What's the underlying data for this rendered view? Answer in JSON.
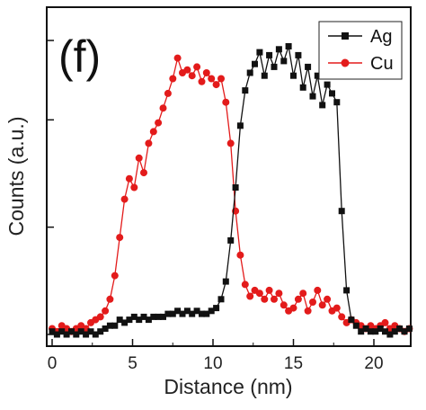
{
  "panel_label": "(f)",
  "colors": {
    "ag": "#111111",
    "cu": "#e31b1b"
  },
  "chart_data": {
    "type": "line",
    "xlabel": "Distance (nm)",
    "ylabel": "Counts (a.u.)",
    "xlim": [
      0,
      22.5
    ],
    "ylim": [
      0,
      1
    ],
    "x_ticks": [
      0,
      5,
      10,
      15,
      20
    ],
    "y_ticks": [
      0.0,
      0.365,
      0.73,
      1.0
    ],
    "y_tick_labels_visible": false,
    "legend_position": "top-right",
    "series": [
      {
        "name": "Ag",
        "marker": "square",
        "x": [
          0,
          0.3,
          0.6,
          0.9,
          1.2,
          1.5,
          1.8,
          2.1,
          2.4,
          2.7,
          3.0,
          3.3,
          3.6,
          3.9,
          4.2,
          4.5,
          4.8,
          5.1,
          5.4,
          5.7,
          6.0,
          6.3,
          6.6,
          6.9,
          7.2,
          7.5,
          7.8,
          8.1,
          8.4,
          8.7,
          9.0,
          9.3,
          9.6,
          9.9,
          10.2,
          10.5,
          10.8,
          11.1,
          11.4,
          11.7,
          12.0,
          12.3,
          12.6,
          12.9,
          13.2,
          13.5,
          13.8,
          14.1,
          14.4,
          14.7,
          15.0,
          15.3,
          15.6,
          15.9,
          16.2,
          16.5,
          16.8,
          17.1,
          17.4,
          17.7,
          18.0,
          18.3,
          18.6,
          18.9,
          19.2,
          19.5,
          19.8,
          20.1,
          20.4,
          20.7,
          21.0,
          21.3,
          21.6,
          21.9,
          22.2
        ],
        "y": [
          0.01,
          0.0,
          0.01,
          0.0,
          0.01,
          0.0,
          0.01,
          0.0,
          0.01,
          0.0,
          0.01,
          0.02,
          0.03,
          0.03,
          0.05,
          0.04,
          0.05,
          0.06,
          0.05,
          0.06,
          0.05,
          0.06,
          0.06,
          0.06,
          0.07,
          0.07,
          0.08,
          0.07,
          0.08,
          0.07,
          0.08,
          0.07,
          0.07,
          0.08,
          0.09,
          0.12,
          0.18,
          0.32,
          0.5,
          0.71,
          0.83,
          0.89,
          0.92,
          0.96,
          0.88,
          0.95,
          0.91,
          0.97,
          0.93,
          0.98,
          0.88,
          0.95,
          0.84,
          0.91,
          0.81,
          0.88,
          0.78,
          0.85,
          0.82,
          0.79,
          0.42,
          0.15,
          0.05,
          0.03,
          0.01,
          0.02,
          0.01,
          0.01,
          0.02,
          0.01,
          0.0,
          0.01,
          0.02,
          0.01,
          0.02
        ]
      },
      {
        "name": "Cu",
        "marker": "circle",
        "x": [
          0,
          0.3,
          0.6,
          0.9,
          1.2,
          1.5,
          1.8,
          2.1,
          2.4,
          2.7,
          3.0,
          3.3,
          3.6,
          3.9,
          4.2,
          4.5,
          4.8,
          5.1,
          5.4,
          5.7,
          6.0,
          6.3,
          6.6,
          6.9,
          7.2,
          7.5,
          7.8,
          8.1,
          8.4,
          8.7,
          9.0,
          9.3,
          9.6,
          9.9,
          10.2,
          10.5,
          10.8,
          11.1,
          11.4,
          11.7,
          12.0,
          12.3,
          12.6,
          12.9,
          13.2,
          13.5,
          13.8,
          14.1,
          14.4,
          14.7,
          15.0,
          15.3,
          15.6,
          15.9,
          16.2,
          16.5,
          16.8,
          17.1,
          17.4,
          17.7,
          18.0,
          18.3,
          18.6,
          18.9,
          19.2,
          19.5,
          19.8,
          20.1,
          20.4,
          20.7,
          21.0,
          21.3,
          21.6,
          21.9,
          22.2
        ],
        "y": [
          0.02,
          0.01,
          0.03,
          0.02,
          0.01,
          0.02,
          0.03,
          0.02,
          0.04,
          0.05,
          0.06,
          0.08,
          0.12,
          0.2,
          0.33,
          0.46,
          0.53,
          0.5,
          0.6,
          0.55,
          0.65,
          0.69,
          0.72,
          0.77,
          0.82,
          0.87,
          0.94,
          0.89,
          0.9,
          0.88,
          0.91,
          0.86,
          0.89,
          0.87,
          0.85,
          0.87,
          0.79,
          0.65,
          0.42,
          0.27,
          0.17,
          0.13,
          0.15,
          0.14,
          0.12,
          0.15,
          0.12,
          0.14,
          0.1,
          0.08,
          0.09,
          0.12,
          0.14,
          0.08,
          0.11,
          0.15,
          0.1,
          0.12,
          0.08,
          0.09,
          0.06,
          0.04,
          0.05,
          0.04,
          0.03,
          0.02,
          0.03,
          0.02,
          0.03,
          0.04,
          0.02,
          0.03,
          0.02,
          0.01,
          0.02
        ]
      }
    ]
  }
}
